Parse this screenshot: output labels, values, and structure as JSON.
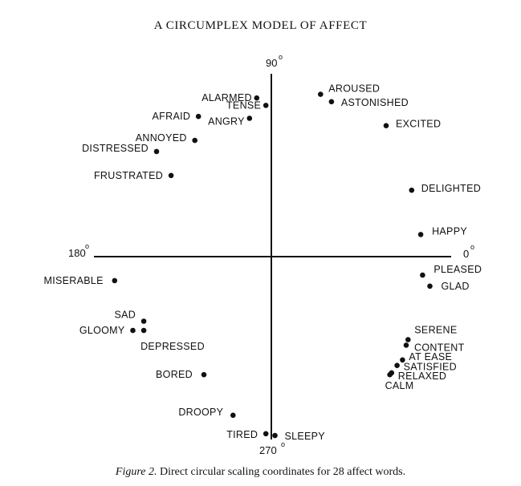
{
  "title": "A CIRCUMPLEX MODEL OF AFFECT",
  "caption": {
    "figure_label": "Figure 2.",
    "text": " Direct circular scaling coordinates for 28 affect words."
  },
  "axes": {
    "top": "90",
    "left": "180",
    "right": "0",
    "bottom": "270",
    "degree_symbol": "o"
  },
  "chart_data": {
    "type": "scatter",
    "title": "A CIRCUMPLEX MODEL OF AFFECT",
    "xlim": [
      -1,
      1
    ],
    "ylim": [
      -1,
      1
    ],
    "grid": false,
    "points": [
      {
        "label": "ALARMED",
        "x": -0.08,
        "y": 0.86
      },
      {
        "label": "TENSE",
        "x": -0.03,
        "y": 0.82
      },
      {
        "label": "AFRAID",
        "x": -0.4,
        "y": 0.76
      },
      {
        "label": "ANGRY",
        "x": -0.12,
        "y": 0.75
      },
      {
        "label": "ANNOYED",
        "x": -0.42,
        "y": 0.63
      },
      {
        "label": "DISTRESSED",
        "x": -0.63,
        "y": 0.57
      },
      {
        "label": "FRUSTRATED",
        "x": -0.55,
        "y": 0.44
      },
      {
        "label": "AROUSED",
        "x": 0.27,
        "y": 0.88
      },
      {
        "label": "ASTONISHED",
        "x": 0.33,
        "y": 0.84
      },
      {
        "label": "EXCITED",
        "x": 0.63,
        "y": 0.71
      },
      {
        "label": "DELIGHTED",
        "x": 0.77,
        "y": 0.36
      },
      {
        "label": "HAPPY",
        "x": 0.82,
        "y": 0.12
      },
      {
        "label": "PLEASED",
        "x": 0.83,
        "y": -0.1
      },
      {
        "label": "GLAD",
        "x": 0.87,
        "y": -0.16
      },
      {
        "label": "SERENE",
        "x": 0.75,
        "y": -0.45
      },
      {
        "label": "CONTENT",
        "x": 0.74,
        "y": -0.48
      },
      {
        "label": "AT EASE",
        "x": 0.72,
        "y": -0.56
      },
      {
        "label": "SATISFIED",
        "x": 0.69,
        "y": -0.59
      },
      {
        "label": "RELAXED",
        "x": 0.66,
        "y": -0.63
      },
      {
        "label": "CALM",
        "x": 0.65,
        "y": -0.64
      },
      {
        "label": "MISERABLE",
        "x": -0.86,
        "y": -0.13
      },
      {
        "label": "SAD",
        "x": -0.7,
        "y": -0.35
      },
      {
        "label": "GLOOMY",
        "x": -0.76,
        "y": -0.4
      },
      {
        "label": "DEPRESSED",
        "x": -0.7,
        "y": -0.4
      },
      {
        "label": "BORED",
        "x": -0.37,
        "y": -0.64
      },
      {
        "label": "DROOPY",
        "x": -0.21,
        "y": -0.86
      },
      {
        "label": "TIRED",
        "x": -0.03,
        "y": -0.96
      },
      {
        "label": "SLEEPY",
        "x": 0.02,
        "y": -0.97
      }
    ]
  }
}
